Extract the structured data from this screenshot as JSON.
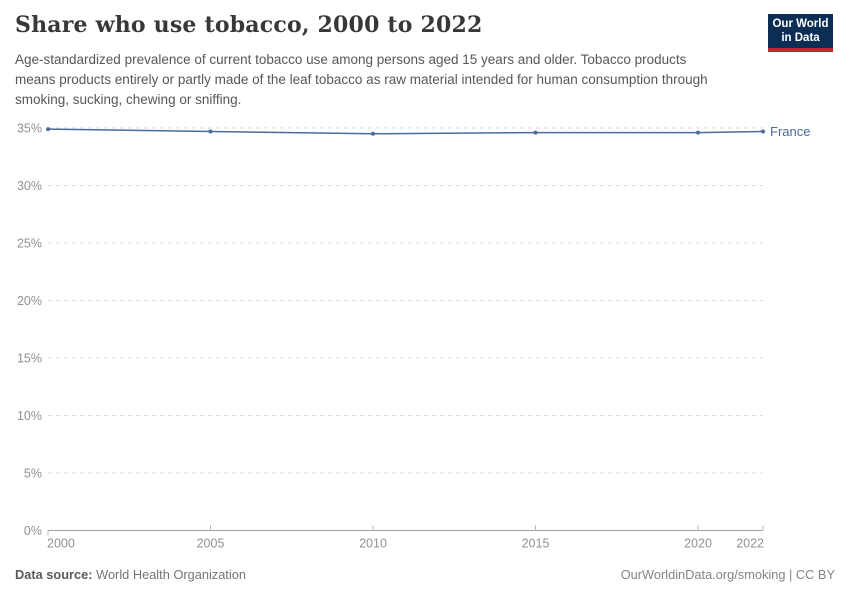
{
  "header": {
    "title": "Share who use tobacco, 2000 to 2022",
    "subtitle": "Age-standardized prevalence of current tobacco use among persons aged 15 years and older. Tobacco products means products entirely or partly made of the leaf tobacco as raw material intended for human consumption through smoking, sucking, chewing or sniffing.",
    "logo": {
      "line1": "Our World",
      "line2": "in Data",
      "bg_color": "#0d2e54",
      "accent_color": "#c0272d"
    }
  },
  "chart_data": {
    "type": "line",
    "title": "Share who use tobacco, 2000 to 2022",
    "x": [
      2000,
      2005,
      2010,
      2015,
      2020,
      2022
    ],
    "series": [
      {
        "name": "France",
        "values": [
          34.9,
          34.7,
          34.5,
          34.6,
          34.6,
          34.7
        ],
        "color": "#4C6A9C"
      }
    ],
    "xlabel": "",
    "ylabel": "",
    "xlim": [
      2000,
      2022
    ],
    "ylim": [
      0,
      35
    ],
    "xticks": [
      2000,
      2005,
      2010,
      2015,
      2020,
      2022
    ],
    "yticks": [
      0,
      5,
      10,
      15,
      20,
      25,
      30,
      35
    ],
    "ytick_suffix": "%",
    "grid": "horizontal dashed",
    "legend_position": "line-end label",
    "marker": "dot"
  },
  "footer": {
    "source_label": "Data source:",
    "source_value": "World Health Organization",
    "credit": "OurWorldinData.org/smoking | CC BY"
  },
  "colors": {
    "title_text": "#383838",
    "subtitle_text": "#575757",
    "axis_label": "#919191",
    "gridline": "#dcdcdc",
    "axis_line": "#a3a3a3",
    "tick_mark": "#b6b6b6",
    "series_line": "#4C6A9C",
    "background": "#ffffff"
  }
}
